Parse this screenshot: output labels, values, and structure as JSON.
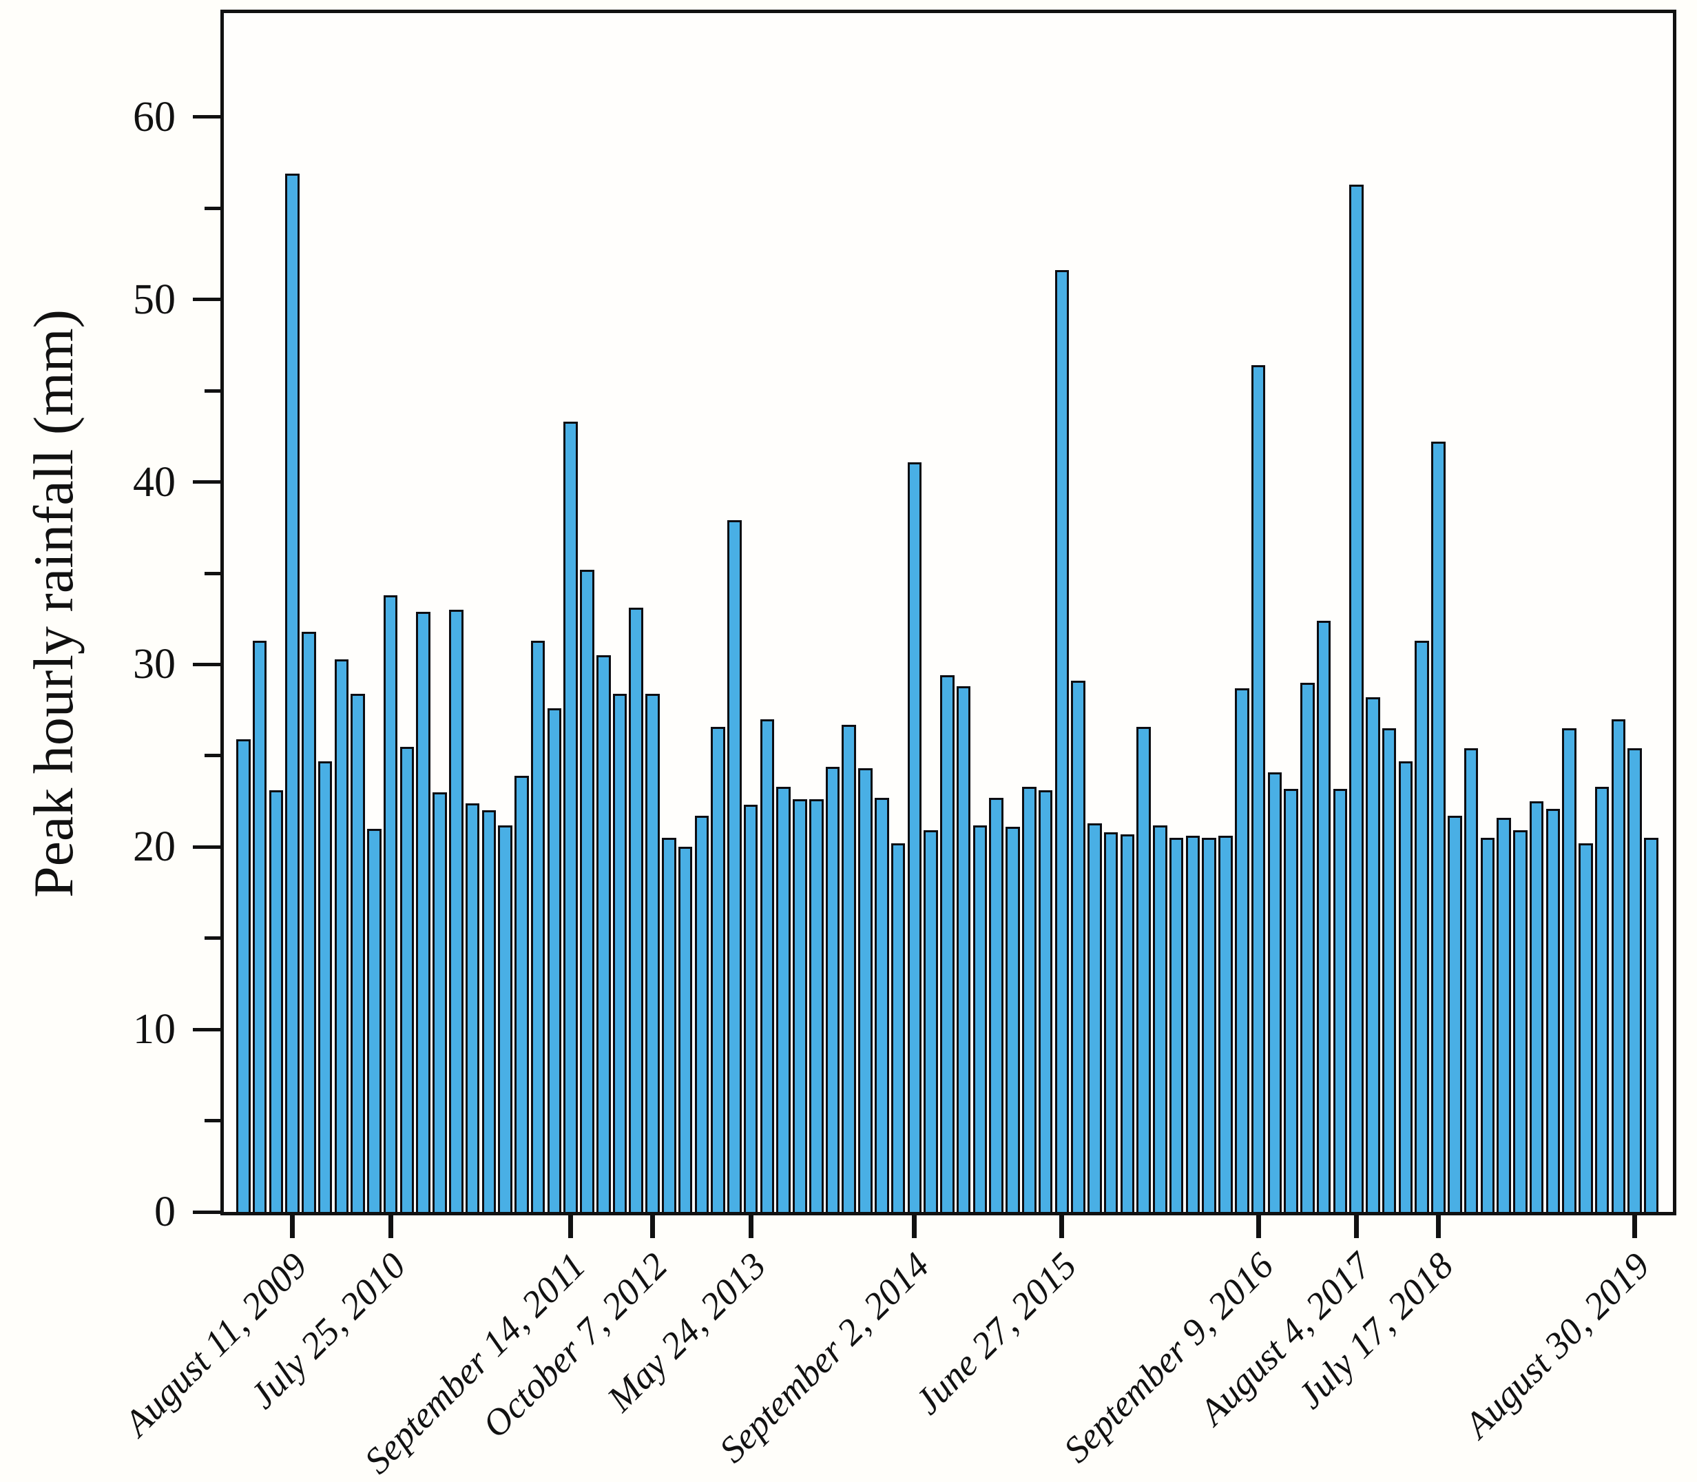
{
  "chart_data": {
    "type": "bar",
    "title": "",
    "xlabel": "",
    "ylabel": "Peak hourly rainfall (mm)",
    "values": [
      25.9,
      31.3,
      23.1,
      56.9,
      31.8,
      24.7,
      30.3,
      28.4,
      21.0,
      33.8,
      25.5,
      32.9,
      23.0,
      33.0,
      22.4,
      22.0,
      21.2,
      23.9,
      31.3,
      27.6,
      43.3,
      35.2,
      30.5,
      28.4,
      33.1,
      28.4,
      20.5,
      20.0,
      21.7,
      26.6,
      37.9,
      22.3,
      27.0,
      23.3,
      22.6,
      22.6,
      24.4,
      26.7,
      24.3,
      22.7,
      20.2,
      41.1,
      20.9,
      29.4,
      28.8,
      21.2,
      22.7,
      21.1,
      23.3,
      23.1,
      51.6,
      29.1,
      21.3,
      20.8,
      20.7,
      26.6,
      21.2,
      20.5,
      20.6,
      20.5,
      20.6,
      28.7,
      46.4,
      24.1,
      23.2,
      29.0,
      32.4,
      23.2,
      56.3,
      28.2,
      26.5,
      24.7,
      31.3,
      42.2,
      21.7,
      25.4,
      20.5,
      21.6,
      20.9,
      22.5,
      22.1,
      26.5,
      20.2,
      23.3,
      27.0,
      25.4,
      20.5
    ],
    "n_bars": 87,
    "x_tick_labels": [
      "August 11, 2009",
      "July 25, 2010",
      "September 14, 2011",
      "October 7, 2012",
      "May 24, 2013",
      "September 2, 2014",
      "June 27, 2015",
      "September 9, 2016",
      "August 4, 2017",
      "July 17, 2018",
      "August 30, 2019"
    ],
    "x_tick_bar_index": [
      3,
      9,
      20,
      25,
      31,
      41,
      50,
      62,
      68,
      73,
      85
    ],
    "y_major_ticks": [
      0,
      10,
      20,
      30,
      40,
      50,
      60
    ],
    "y_minor_ticks": [
      5,
      15,
      25,
      35,
      45,
      55
    ],
    "ylim": [
      0,
      65.7
    ],
    "grid": false,
    "legend": "none",
    "bar_fill": "#49afe5",
    "bar_edge": "#0d0d12",
    "axis_color": "#111111",
    "background": "#fffefa"
  }
}
